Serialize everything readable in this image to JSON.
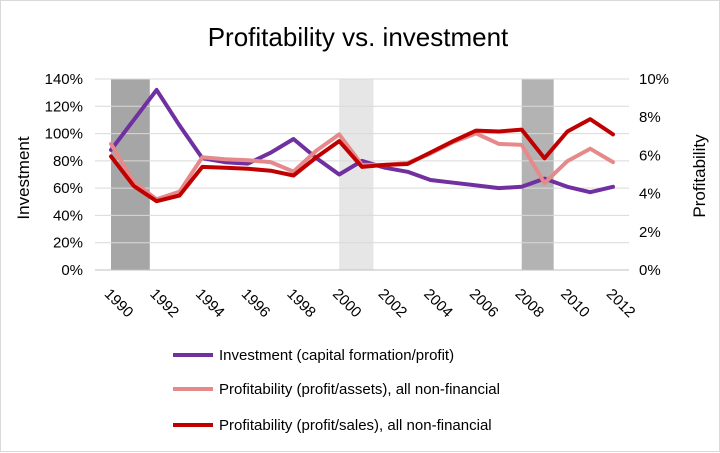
{
  "chart_data": {
    "type": "line",
    "title": "Profitability vs. investment",
    "xlabel": "",
    "ylabel_left": "Investment",
    "ylabel_right": "Profitability",
    "x_ticks": [
      "1990",
      "1992",
      "1994",
      "1996",
      "1998",
      "2000",
      "2002",
      "2004",
      "2006",
      "2008",
      "2010",
      "2012"
    ],
    "ylim_left": [
      0,
      140
    ],
    "ylim_right": [
      0,
      10
    ],
    "y_ticks_left": [
      "0%",
      "20%",
      "40%",
      "60%",
      "80%",
      "100%",
      "120%",
      "140%"
    ],
    "y_ticks_right": [
      "0%",
      "2%",
      "4%",
      "6%",
      "8%",
      "10%"
    ],
    "grid": "horizontal",
    "legend_position": "bottom",
    "shaded_periods": [
      {
        "start": 1990,
        "end": 1991.7,
        "color": "#a6a6a6"
      },
      {
        "start": 2000,
        "end": 2001.5,
        "color": "#e6e6e6"
      },
      {
        "start": 2008,
        "end": 2009.4,
        "color": "#b3b3b3"
      }
    ],
    "series": [
      {
        "name": "Investment (capital formation/profit)",
        "axis": "left",
        "color": "#7030a0",
        "x": [
          1990,
          1991,
          1992,
          1993,
          1994,
          1995,
          1996,
          1997,
          1998,
          1999,
          2000,
          2001,
          2002,
          2003,
          2004,
          2005,
          2006,
          2007,
          2008,
          2009,
          2010,
          2011,
          2012
        ],
        "values": [
          88,
          110,
          132,
          106,
          82,
          79,
          78,
          86,
          96,
          82,
          70,
          80,
          75,
          72,
          66,
          64,
          62,
          60,
          61,
          67,
          61,
          57,
          61
        ]
      },
      {
        "name": "Profitability (profit/assets), all non-financial",
        "axis": "right",
        "color": "#e6898a",
        "x": [
          1990,
          1991,
          1992,
          1993,
          1994,
          1995,
          1996,
          1997,
          1998,
          1999,
          2000,
          2001,
          2002,
          2003,
          2004,
          2005,
          2006,
          2007,
          2008,
          2009,
          2010,
          2011,
          2012
        ],
        "values": [
          6.6,
          4.6,
          3.7,
          4.1,
          5.9,
          5.8,
          5.75,
          5.65,
          5.15,
          6.25,
          7.1,
          5.5,
          5.5,
          5.6,
          6.1,
          6.7,
          7.15,
          6.6,
          6.55,
          4.55,
          5.7,
          6.35,
          5.65
        ]
      },
      {
        "name": "Profitability (profit/sales), all non-financial",
        "axis": "right",
        "color": "#c00000",
        "x": [
          1990,
          1991,
          1992,
          1993,
          1994,
          1995,
          1996,
          1997,
          1998,
          1999,
          2000,
          2001,
          2002,
          2003,
          2004,
          2005,
          2006,
          2007,
          2008,
          2009,
          2010,
          2011,
          2012
        ],
        "values": [
          5.95,
          4.4,
          3.6,
          3.9,
          5.4,
          5.35,
          5.3,
          5.2,
          4.95,
          5.9,
          6.75,
          5.4,
          5.5,
          5.55,
          6.15,
          6.75,
          7.3,
          7.25,
          7.35,
          5.85,
          7.25,
          7.9,
          7.1
        ]
      }
    ]
  }
}
